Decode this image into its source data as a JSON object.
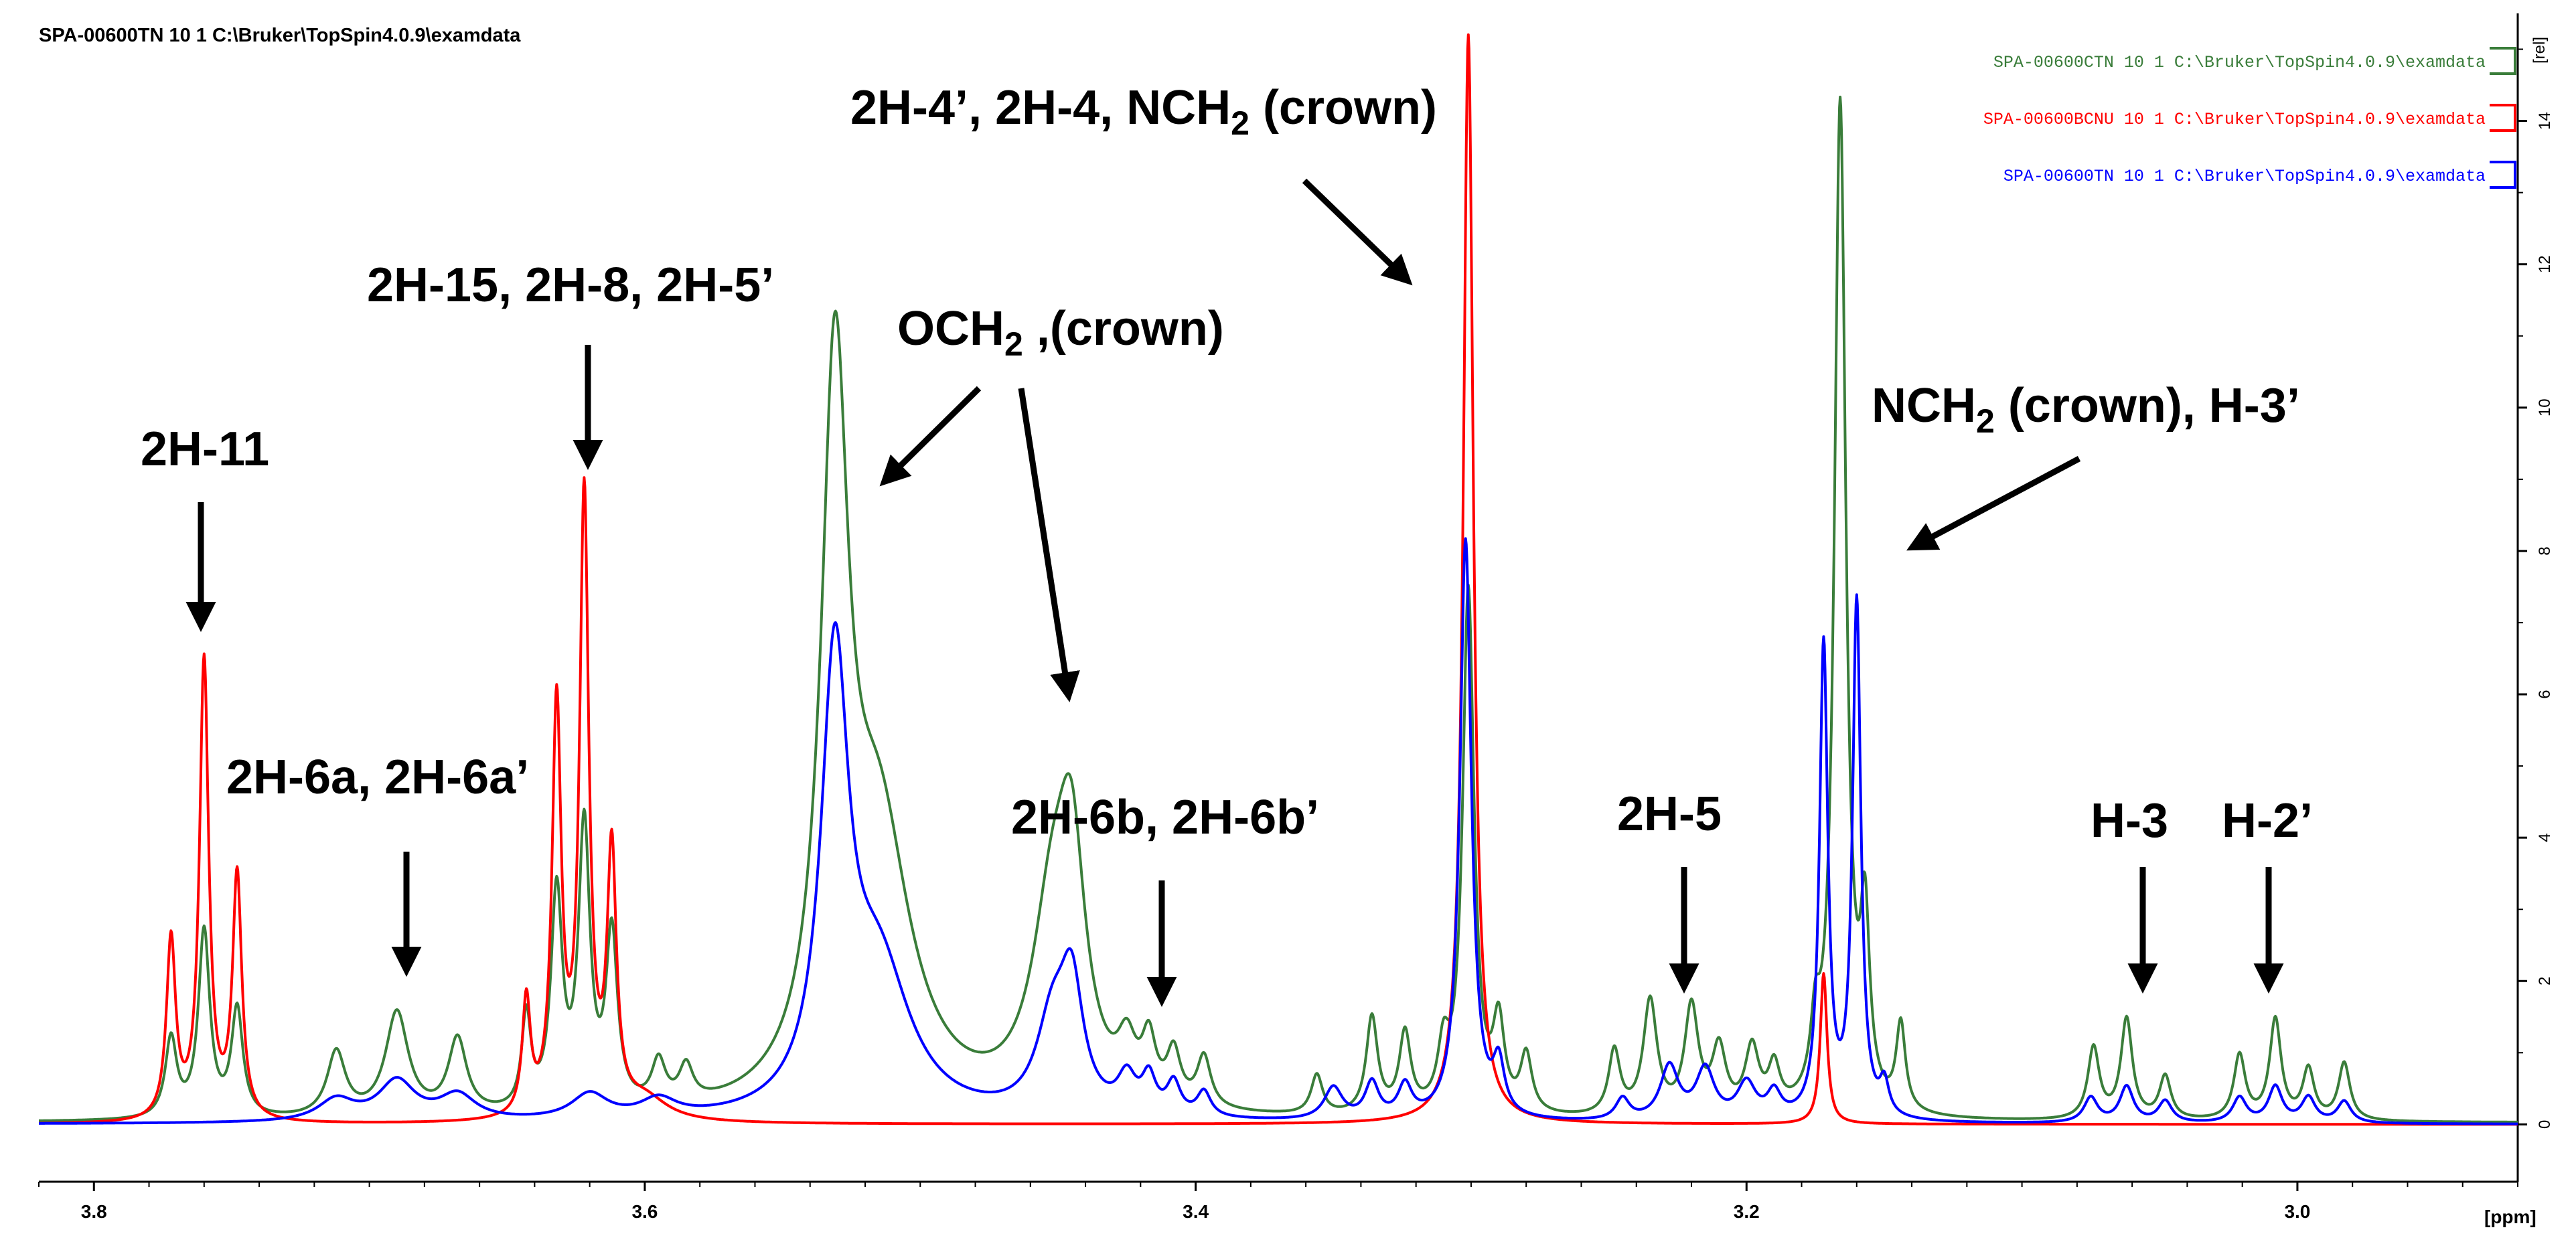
{
  "header": {
    "dataset_label": "SPA-00600TN  10  1  C:\\Bruker\\TopSpin4.0.9\\examdata"
  },
  "chart_data": {
    "type": "line",
    "title": "",
    "xlabel": "[ppm]",
    "ylabel": "[rel]",
    "xlim": [
      3.82,
      2.92
    ],
    "ylim": [
      -0.8,
      15.5
    ],
    "x_ticks": [
      "3.8",
      "3.6",
      "3.4",
      "3.2",
      "3.0"
    ],
    "y_ticks": [
      "0",
      "2",
      "4",
      "6",
      "8",
      "10",
      "12",
      "14"
    ],
    "legend_position": "top-right",
    "series": [
      {
        "name": "SPA-00600CTN  10  1  C:\\Bruker\\TopSpin4.0.9\\examdata",
        "color": "#3a7d3a",
        "baseline": 0.02,
        "peaks": [
          [
            3.772,
            1.1,
            0.0025
          ],
          [
            3.76,
            2.6,
            0.0025
          ],
          [
            3.748,
            1.5,
            0.0025
          ],
          [
            3.712,
            0.9,
            0.004
          ],
          [
            3.69,
            1.45,
            0.005
          ],
          [
            3.668,
            1.05,
            0.004
          ],
          [
            3.643,
            1.3,
            0.002
          ],
          [
            3.632,
            3.0,
            0.0025
          ],
          [
            3.622,
            3.9,
            0.0025
          ],
          [
            3.612,
            2.4,
            0.0025
          ],
          [
            3.595,
            0.6,
            0.003
          ],
          [
            3.585,
            0.5,
            0.003
          ],
          [
            3.531,
            9.6,
            0.006
          ],
          [
            3.515,
            3.8,
            0.014
          ],
          [
            3.452,
            2.6,
            0.009
          ],
          [
            3.445,
            2.9,
            0.006
          ],
          [
            3.425,
            0.7,
            0.004
          ],
          [
            3.417,
            0.8,
            0.003
          ],
          [
            3.408,
            0.7,
            0.003
          ],
          [
            3.397,
            0.7,
            0.003
          ],
          [
            3.356,
            0.55,
            0.0025
          ],
          [
            3.336,
            1.35,
            0.0025
          ],
          [
            3.324,
            1.1,
            0.0025
          ],
          [
            3.31,
            0.8,
            0.0025
          ],
          [
            3.301,
            7.3,
            0.0025
          ],
          [
            3.29,
            1.2,
            0.0025
          ],
          [
            3.28,
            0.8,
            0.0025
          ],
          [
            3.248,
            0.9,
            0.0025
          ],
          [
            3.235,
            1.6,
            0.003
          ],
          [
            3.22,
            1.5,
            0.003
          ],
          [
            3.21,
            0.9,
            0.003
          ],
          [
            3.198,
            0.9,
            0.003
          ],
          [
            3.19,
            0.6,
            0.0025
          ],
          [
            3.175,
            0.9,
            0.002
          ],
          [
            3.166,
            14.1,
            0.0025
          ],
          [
            3.157,
            2.4,
            0.002
          ],
          [
            3.144,
            1.2,
            0.002
          ],
          [
            3.074,
            1.0,
            0.0025
          ],
          [
            3.062,
            1.4,
            0.0025
          ],
          [
            3.048,
            0.6,
            0.0025
          ],
          [
            3.021,
            0.9,
            0.0025
          ],
          [
            3.008,
            1.4,
            0.0025
          ],
          [
            2.996,
            0.7,
            0.0025
          ],
          [
            2.983,
            0.8,
            0.0025
          ]
        ]
      },
      {
        "name": "SPA-00600BCNU  10  1  C:\\Bruker\\TopSpin4.0.9\\examdata",
        "color": "#ff0000",
        "baseline": 0.0,
        "peaks": [
          [
            3.772,
            2.5,
            0.002
          ],
          [
            3.76,
            6.4,
            0.002
          ],
          [
            3.748,
            3.4,
            0.002
          ],
          [
            3.643,
            1.6,
            0.0018
          ],
          [
            3.632,
            5.7,
            0.002
          ],
          [
            3.622,
            8.6,
            0.002
          ],
          [
            3.612,
            3.6,
            0.002
          ],
          [
            3.6,
            0.3,
            0.01
          ],
          [
            3.301,
            15.2,
            0.0022
          ],
          [
            3.172,
            2.1,
            0.0015
          ]
        ]
      },
      {
        "name": "SPA-00600TN  10  1  C:\\Bruker\\TopSpin4.0.9\\examdata",
        "color": "#0000ff",
        "baseline": 0.0,
        "peaks": [
          [
            3.712,
            0.3,
            0.008
          ],
          [
            3.69,
            0.55,
            0.008
          ],
          [
            3.668,
            0.35,
            0.008
          ],
          [
            3.62,
            0.35,
            0.008
          ],
          [
            3.595,
            0.25,
            0.008
          ],
          [
            3.531,
            6.1,
            0.006
          ],
          [
            3.515,
            2.0,
            0.014
          ],
          [
            3.452,
            1.25,
            0.007
          ],
          [
            3.445,
            1.65,
            0.005
          ],
          [
            3.425,
            0.5,
            0.004
          ],
          [
            3.417,
            0.5,
            0.003
          ],
          [
            3.408,
            0.45,
            0.003
          ],
          [
            3.397,
            0.35,
            0.003
          ],
          [
            3.35,
            0.45,
            0.004
          ],
          [
            3.336,
            0.5,
            0.003
          ],
          [
            3.324,
            0.45,
            0.003
          ],
          [
            3.302,
            8.1,
            0.0025
          ],
          [
            3.29,
            0.7,
            0.0025
          ],
          [
            3.245,
            0.3,
            0.003
          ],
          [
            3.228,
            0.75,
            0.004
          ],
          [
            3.215,
            0.7,
            0.004
          ],
          [
            3.2,
            0.5,
            0.004
          ],
          [
            3.19,
            0.35,
            0.003
          ],
          [
            3.172,
            6.6,
            0.0018
          ],
          [
            3.16,
            7.2,
            0.0018
          ],
          [
            3.15,
            0.45,
            0.002
          ],
          [
            3.075,
            0.35,
            0.003
          ],
          [
            3.062,
            0.5,
            0.003
          ],
          [
            3.048,
            0.3,
            0.003
          ],
          [
            3.021,
            0.35,
            0.003
          ],
          [
            3.008,
            0.5,
            0.003
          ],
          [
            2.996,
            0.35,
            0.003
          ],
          [
            2.983,
            0.3,
            0.003
          ]
        ]
      }
    ],
    "annotations": [
      {
        "id": "ann-2h-11",
        "text": "2H-11",
        "target_ppm": 3.76
      },
      {
        "id": "ann-2h-6a",
        "text": "2H-6a, 2H-6a’",
        "target_ppm": 3.69
      },
      {
        "id": "ann-2h-15",
        "text": "2H-15, 2H-8, 2H-5’",
        "target_ppm": 3.622
      },
      {
        "id": "ann-och2",
        "text": "OCH",
        "sub": "2",
        "text_after": " ,(crown)",
        "target_ppm": 3.531
      },
      {
        "id": "ann-2h-6b",
        "text": "2H-6b, 2H-6b’",
        "target_ppm": 3.42
      },
      {
        "id": "ann-2h-4",
        "text": "2H-4’, 2H-4, NCH",
        "sub": "2",
        "text_after": " (crown)",
        "target_ppm": 3.301
      },
      {
        "id": "ann-2h-5",
        "text": "2H-5",
        "target_ppm": 3.225
      },
      {
        "id": "ann-nch2",
        "text": "NCH",
        "sub": "2",
        "text_after": " (crown), H-3’",
        "target_ppm": 3.166
      },
      {
        "id": "ann-h-3",
        "text": "H-3",
        "target_ppm": 3.062
      },
      {
        "id": "ann-h-2p",
        "text": "H-2’",
        "target_ppm": 3.008
      }
    ]
  }
}
